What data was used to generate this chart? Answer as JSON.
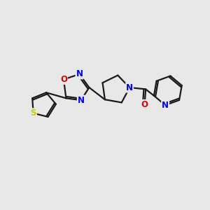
{
  "background_color": "#e8e8e8",
  "bond_color": "#1a1a1a",
  "atom_colors": {
    "N": "#0000ee",
    "O": "#dd0000",
    "S": "#cccc00",
    "C": "#1a1a1a"
  },
  "bond_width": 1.6,
  "font_size": 8.5,
  "figsize": [
    3.0,
    3.0
  ],
  "dpi": 100
}
